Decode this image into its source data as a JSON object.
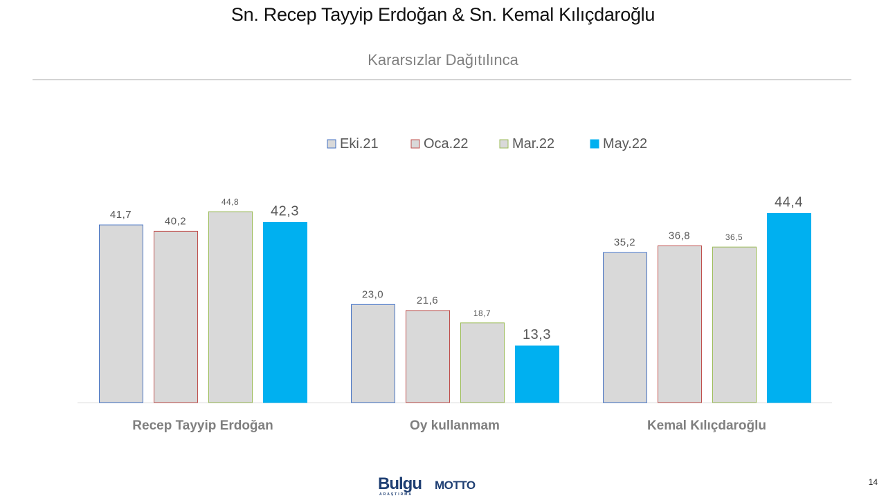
{
  "header": {
    "title": "Sn. Recep Tayyip Erdoğan & Sn. Kemal Kılıçdaroğlu",
    "subtitle": "Kararsızlar  Dağıtılınca"
  },
  "chart_data": {
    "type": "bar",
    "title": "Sn. Recep Tayyip Erdoğan & Sn. Kemal Kılıçdaroğlu",
    "subtitle": "Kararsızlar  Dağıtılınca",
    "categories": [
      "Recep Tayyip Erdoğan",
      "Oy kullanmam",
      "Kemal Kılıçdaroğlu"
    ],
    "series": [
      {
        "name": "Eki.21",
        "values": [
          41.7,
          23.0,
          35.2
        ],
        "labels": [
          "41,7",
          "23,0",
          "35,2"
        ],
        "fill": "#d9d9d9",
        "stroke": "#4472c4"
      },
      {
        "name": "Oca.22",
        "values": [
          40.2,
          21.6,
          36.8
        ],
        "labels": [
          "40,2",
          "21,6",
          "36,8"
        ],
        "fill": "#d9d9d9",
        "stroke": "#c0504d"
      },
      {
        "name": "Mar.22",
        "values": [
          44.8,
          18.7,
          36.5
        ],
        "labels": [
          "44,8",
          "18,7",
          "36,5"
        ],
        "fill": "#d9d9d9",
        "stroke": "#9bbb59"
      },
      {
        "name": "May.22",
        "values": [
          42.3,
          13.3,
          44.4
        ],
        "labels": [
          "42,3",
          "13,3",
          "44,4"
        ],
        "fill": "#00b0f0",
        "stroke": "#00b0f0"
      }
    ],
    "xlabel": "",
    "ylabel": "",
    "ylim": [
      0,
      50
    ],
    "grid": false,
    "legend": "top-center"
  },
  "footer": {
    "logo_primary": "Bulgu",
    "logo_primary_sub": "ARAŞTIRMA",
    "logo_secondary": "MOTTO",
    "page_number": "14"
  },
  "colors": {
    "label_text": "#595959",
    "category_text": "#7f7f7f",
    "axis_line": "#d9d9d9"
  }
}
